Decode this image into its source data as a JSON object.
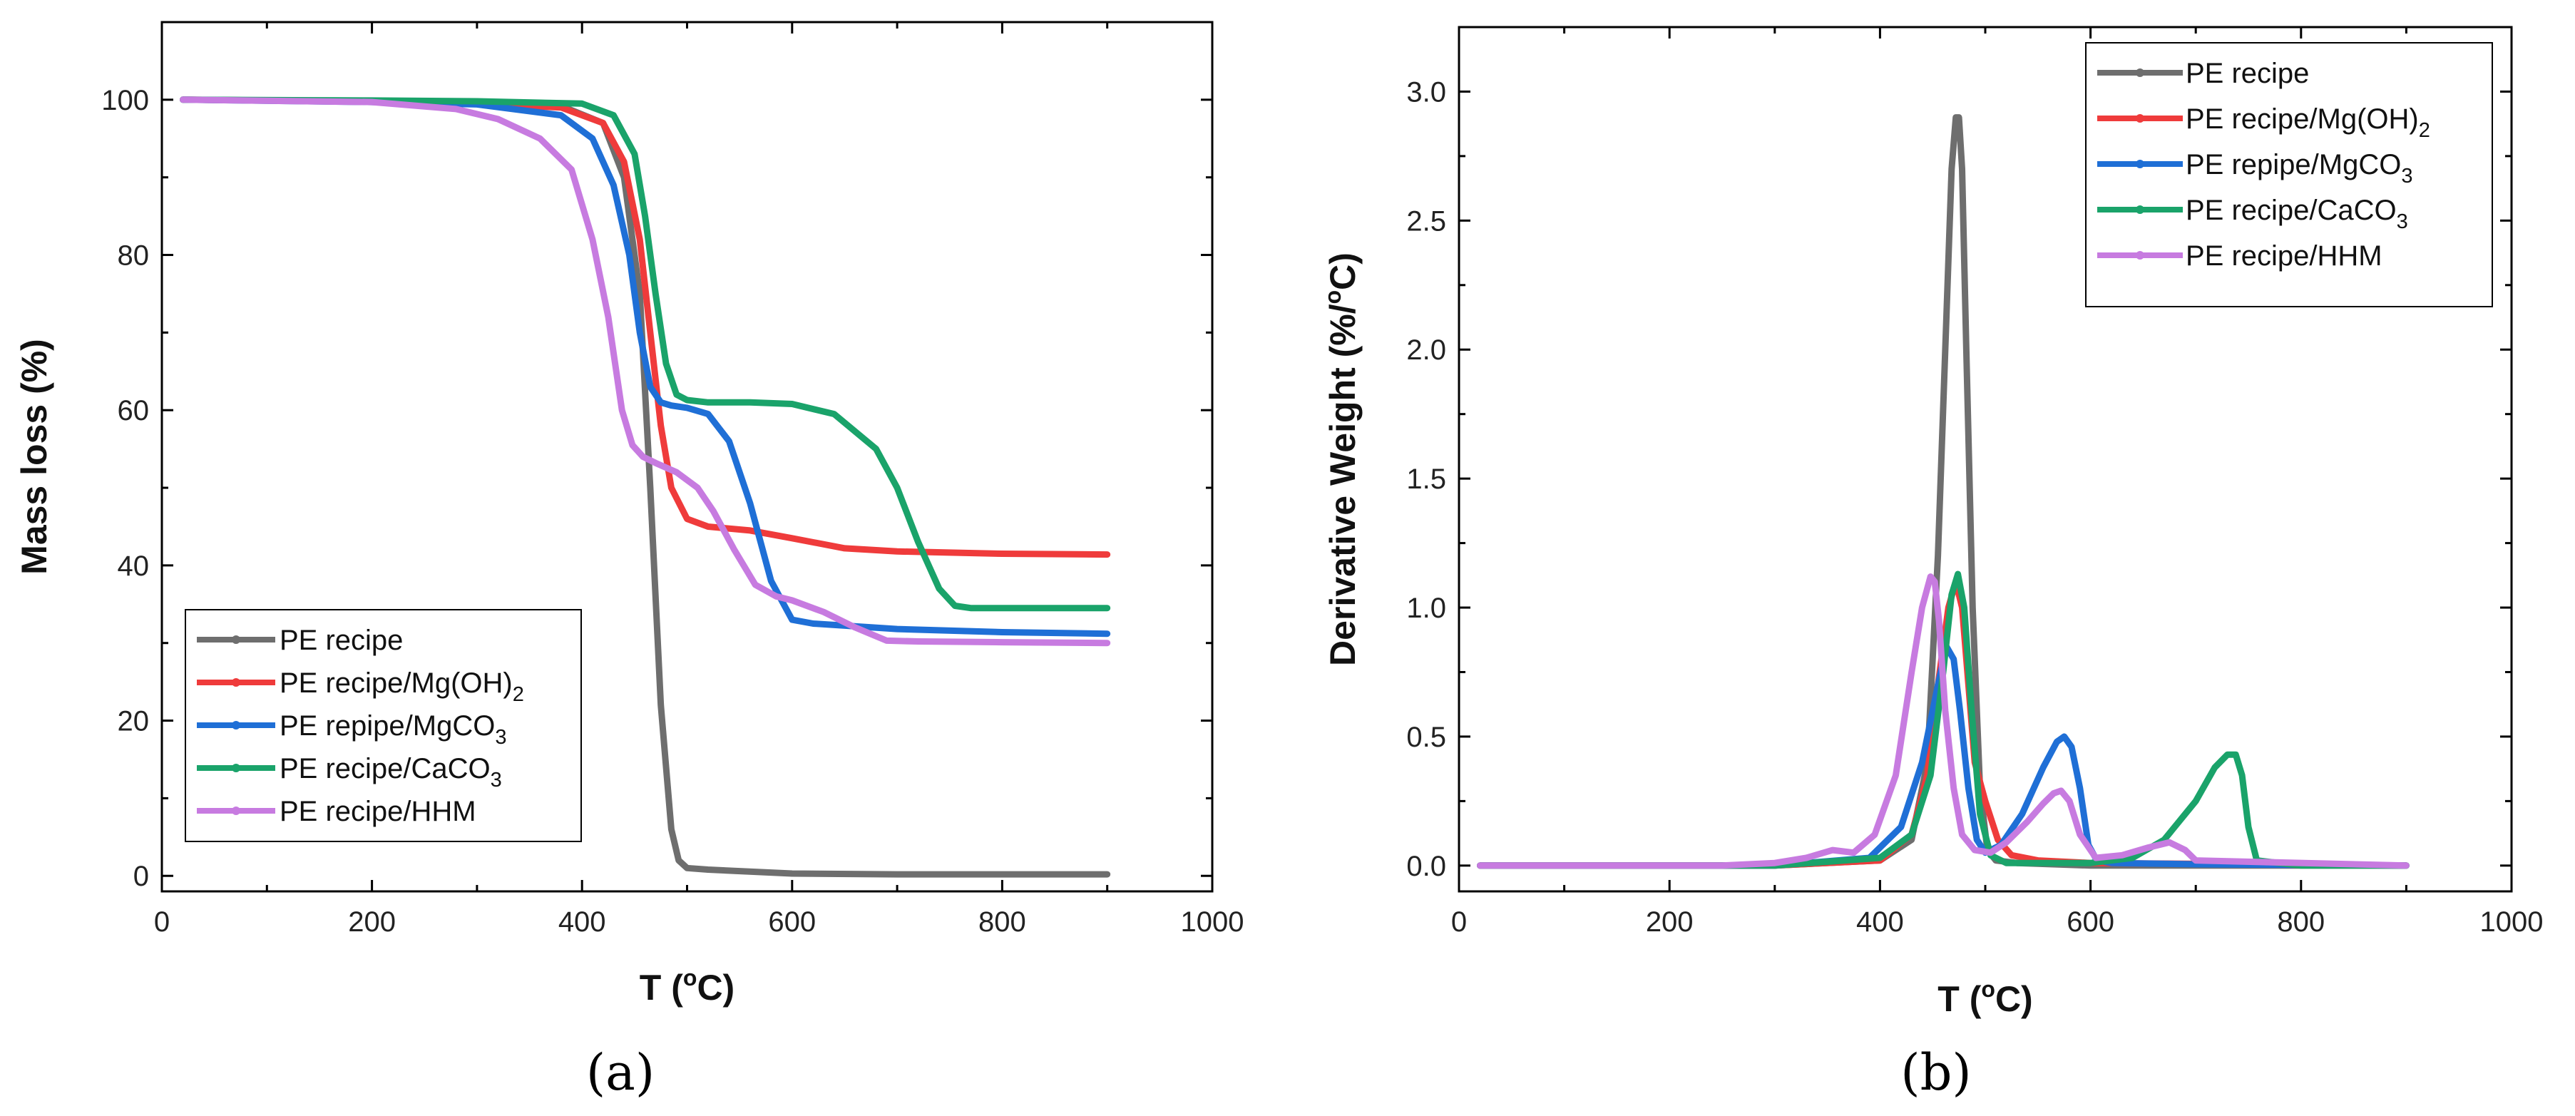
{
  "figure": {
    "panel_labels": [
      "(",
      "a",
      ")",
      "(",
      "b",
      ")"
    ]
  },
  "colors": {
    "pe": "#6e6e6e",
    "mgoh2": "#ef3b3b",
    "mgco3": "#1f6fd6",
    "caco3": "#1aa36a",
    "hhm": "#c77be0"
  },
  "legend": [
    {
      "key": "pe",
      "text": "PE recipe",
      "sub": ""
    },
    {
      "key": "mgoh2",
      "text": "PE recipe/Mg(OH)",
      "sub": "2"
    },
    {
      "key": "mgco3",
      "text": "PE repipe/MgCO",
      "sub": "3"
    },
    {
      "key": "caco3",
      "text": "PE recipe/CaCO",
      "sub": "3"
    },
    {
      "key": "hhm",
      "text": "PE recipe/HHM",
      "sub": ""
    }
  ],
  "chart_data": [
    {
      "type": "line",
      "panel": "a",
      "title": "",
      "xlabel": "T (°C)",
      "xlabel_parts": [
        "T (",
        "o",
        "C)"
      ],
      "ylabel": "Mass loss (%)",
      "xlim": [
        0,
        1000
      ],
      "ylim": [
        -2,
        110
      ],
      "xticks": [
        0,
        200,
        400,
        600,
        800,
        1000
      ],
      "yticks": [
        0,
        20,
        40,
        60,
        80,
        100
      ],
      "legend_position": "bottom-left",
      "series": [
        {
          "key": "pe",
          "name": "PE recipe",
          "x": [
            20,
            200,
            300,
            380,
            420,
            440,
            455,
            465,
            475,
            485,
            492,
            500,
            520,
            600,
            700,
            800,
            900
          ],
          "y": [
            100,
            99.8,
            99.6,
            99.2,
            97,
            90,
            75,
            50,
            22,
            6,
            2,
            1,
            0.8,
            0.3,
            0.2,
            0.2,
            0.2
          ]
        },
        {
          "key": "mgoh2",
          "name": "PE recipe/Mg(OH)2",
          "x": [
            20,
            200,
            300,
            380,
            420,
            440,
            455,
            465,
            475,
            485,
            500,
            520,
            560,
            600,
            650,
            700,
            800,
            900
          ],
          "y": [
            100,
            99.8,
            99.5,
            99,
            97,
            92,
            82,
            70,
            58,
            50,
            46,
            45,
            44.5,
            43.5,
            42.2,
            41.8,
            41.5,
            41.4
          ]
        },
        {
          "key": "mgco3",
          "name": "PE repipe/MgCO3",
          "x": [
            20,
            200,
            300,
            380,
            410,
            430,
            445,
            455,
            465,
            475,
            485,
            500,
            520,
            540,
            560,
            580,
            600,
            620,
            700,
            800,
            900
          ],
          "y": [
            100,
            99.7,
            99.4,
            98,
            95,
            89,
            80,
            70,
            63,
            61,
            60.6,
            60.3,
            59.5,
            56,
            48,
            38,
            33,
            32.5,
            31.8,
            31.4,
            31.2
          ]
        },
        {
          "key": "caco3",
          "name": "PE recipe/CaCO3",
          "x": [
            20,
            200,
            300,
            400,
            430,
            450,
            460,
            470,
            480,
            490,
            500,
            520,
            560,
            600,
            640,
            680,
            700,
            720,
            740,
            755,
            770,
            800,
            900
          ],
          "y": [
            100,
            99.9,
            99.8,
            99.5,
            98,
            93,
            85,
            75,
            66,
            62,
            61.3,
            61,
            61,
            60.8,
            59.5,
            55,
            50,
            43,
            37,
            34.8,
            34.5,
            34.5,
            34.5
          ]
        },
        {
          "key": "hhm",
          "name": "PE recipe/HHM",
          "x": [
            20,
            200,
            280,
            320,
            360,
            390,
            410,
            425,
            438,
            448,
            458,
            470,
            490,
            510,
            525,
            545,
            565,
            585,
            600,
            630,
            660,
            690,
            720,
            800,
            900
          ],
          "y": [
            100,
            99.7,
            98.8,
            97.5,
            95,
            91,
            82,
            72,
            60,
            55.5,
            54,
            53.2,
            52,
            50,
            47,
            42,
            37.5,
            36,
            35.5,
            34,
            32,
            30.3,
            30.2,
            30.1,
            30
          ]
        }
      ]
    },
    {
      "type": "line",
      "panel": "b",
      "title": "",
      "xlabel": "T (°C)",
      "xlabel_parts": [
        "T (",
        "o",
        "C)"
      ],
      "ylabel": "Derivative Weight (%/°C)",
      "ylabel_parts": [
        "Derivative Weight (%/",
        "o",
        "C)"
      ],
      "xlim": [
        0,
        1000
      ],
      "ylim": [
        -0.1,
        3.25
      ],
      "xticks": [
        0,
        200,
        400,
        600,
        800,
        1000
      ],
      "yticks": [
        0.0,
        0.5,
        1.0,
        1.5,
        2.0,
        2.5,
        3.0
      ],
      "ytick_labels": [
        "0.0",
        "0.5",
        "1.0",
        "1.5",
        "2.0",
        "2.5",
        "3.0"
      ],
      "legend_position": "top-right",
      "series": [
        {
          "key": "pe",
          "name": "PE recipe",
          "x": [
            20,
            300,
            400,
            430,
            445,
            455,
            462,
            468,
            472,
            475,
            478,
            482,
            488,
            495,
            502,
            510,
            530,
            600,
            900
          ],
          "y": [
            0,
            0,
            0.02,
            0.1,
            0.4,
            1.2,
            2.0,
            2.7,
            2.9,
            2.9,
            2.7,
            2.0,
            1.0,
            0.3,
            0.06,
            0.02,
            0.01,
            0,
            0
          ]
        },
        {
          "key": "mgoh2",
          "name": "PE recipe/Mg(OH)2",
          "x": [
            20,
            300,
            400,
            430,
            445,
            455,
            465,
            472,
            478,
            484,
            490,
            500,
            512,
            525,
            550,
            600,
            900
          ],
          "y": [
            0,
            0,
            0.02,
            0.12,
            0.35,
            0.7,
            1.0,
            1.1,
            1.0,
            0.7,
            0.4,
            0.25,
            0.1,
            0.04,
            0.02,
            0.01,
            0
          ]
        },
        {
          "key": "mgco3",
          "name": "PE repipe/MgCO3",
          "x": [
            20,
            300,
            390,
            420,
            440,
            455,
            463,
            470,
            476,
            484,
            492,
            500,
            515,
            535,
            555,
            568,
            575,
            582,
            590,
            598,
            606,
            620,
            700,
            900
          ],
          "y": [
            0,
            0,
            0.03,
            0.15,
            0.4,
            0.7,
            0.85,
            0.8,
            0.6,
            0.3,
            0.1,
            0.05,
            0.08,
            0.2,
            0.38,
            0.48,
            0.5,
            0.46,
            0.3,
            0.08,
            0.02,
            0.01,
            0.005,
            0
          ]
        },
        {
          "key": "caco3",
          "name": "PE recipe/CaCO3",
          "x": [
            20,
            300,
            400,
            430,
            448,
            460,
            468,
            474,
            480,
            487,
            495,
            505,
            520,
            600,
            640,
            670,
            700,
            718,
            730,
            738,
            744,
            750,
            758,
            800,
            900
          ],
          "y": [
            0,
            0,
            0.03,
            0.12,
            0.35,
            0.75,
            1.05,
            1.13,
            1.0,
            0.6,
            0.2,
            0.04,
            0.01,
            0.01,
            0.03,
            0.1,
            0.25,
            0.38,
            0.43,
            0.43,
            0.35,
            0.15,
            0.02,
            0,
            0
          ]
        },
        {
          "key": "hhm",
          "name": "PE recipe/HHM",
          "x": [
            20,
            250,
            300,
            330,
            355,
            375,
            395,
            415,
            430,
            440,
            448,
            452,
            456,
            462,
            470,
            478,
            490,
            505,
            520,
            540,
            555,
            565,
            572,
            580,
            590,
            605,
            630,
            655,
            675,
            690,
            700,
            900
          ],
          "y": [
            0,
            0,
            0.01,
            0.03,
            0.06,
            0.05,
            0.12,
            0.35,
            0.75,
            1.0,
            1.12,
            1.1,
            0.95,
            0.6,
            0.3,
            0.12,
            0.06,
            0.05,
            0.09,
            0.17,
            0.24,
            0.28,
            0.29,
            0.25,
            0.12,
            0.03,
            0.04,
            0.07,
            0.09,
            0.06,
            0.02,
            0
          ]
        }
      ]
    }
  ]
}
